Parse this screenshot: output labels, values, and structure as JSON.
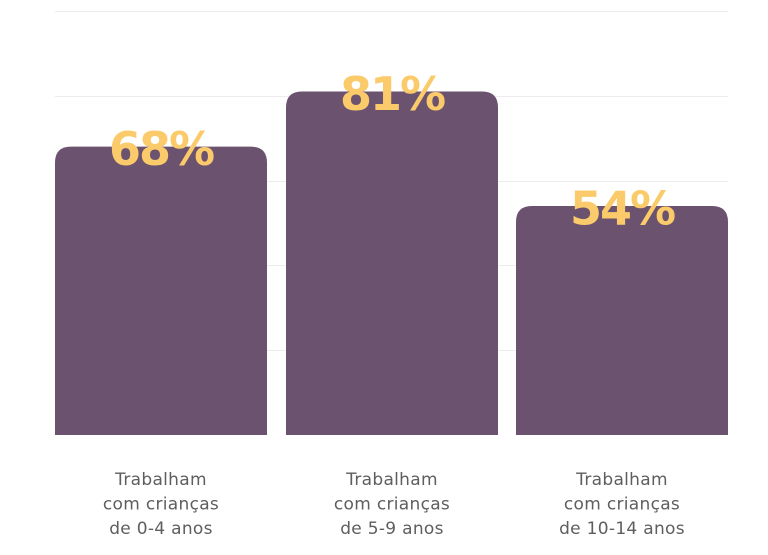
{
  "chart_data": {
    "type": "bar",
    "title": "",
    "xlabel": "",
    "ylabel": "",
    "ylim": [
      0,
      100
    ],
    "grid": true,
    "categories": [
      [
        "Trabalham",
        "com crianças",
        "de 0-4 anos"
      ],
      [
        "Trabalham",
        "com crianças",
        "de 5-9 anos"
      ],
      [
        "Trabalham",
        "com crianças",
        "de 10-14 anos"
      ]
    ],
    "values": [
      68,
      81,
      54
    ],
    "value_labels": [
      "68%",
      "81%",
      "54%"
    ],
    "gridline_values": [
      20,
      40,
      60,
      80,
      100
    ],
    "colors": {
      "bar": "#6b526e",
      "value_label": "#fbcb6b",
      "grid": "#ececec",
      "category_text": "#5e5e5e"
    }
  }
}
